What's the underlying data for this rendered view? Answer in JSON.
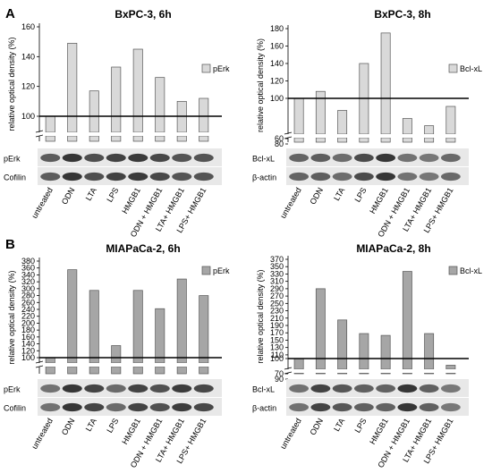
{
  "panels": {
    "A": {
      "label": "A"
    },
    "B": {
      "label": "B"
    }
  },
  "categories": [
    "untreated",
    "ODN",
    "LTA",
    "LPS",
    "HMGB1",
    "ODN + HMGB1",
    "LTA+ HMGB1",
    "LPS+ HMGB1"
  ],
  "chart_data": [
    {
      "type": "bar",
      "title": "BxPC-3, 6h",
      "ylabel": "relative optical density (%)",
      "legend": "pErk",
      "legend_position": "right",
      "categories": [
        "untreated",
        "ODN",
        "LTA",
        "LPS",
        "HMGB1",
        "ODN + HMGB1",
        "LTA+ HMGB1",
        "LPS+ HMGB1"
      ],
      "values": [
        100,
        149,
        117,
        133,
        145,
        126,
        110,
        112
      ],
      "yticks": [
        100,
        120,
        140,
        160
      ],
      "ylim": [
        0,
        160
      ],
      "axis_break": true,
      "reference_line": 100,
      "bar_color": "#d9d9d9",
      "blot_labels": [
        "pErk",
        "Cofilin"
      ]
    },
    {
      "type": "bar",
      "title": "BxPC-3, 8h",
      "ylabel": "relative optical density (%)",
      "legend": "Bcl-xL",
      "legend_position": "right",
      "categories": [
        "untreated",
        "ODN",
        "LTA",
        "LPS",
        "HMGB1",
        "ODN + HMGB1",
        "LTA+ HMGB1",
        "LPS+ HMGB1"
      ],
      "values": [
        100,
        108,
        85,
        140,
        175,
        75,
        66,
        90
      ],
      "yticks": [
        60,
        80,
        100,
        120,
        140,
        160,
        180
      ],
      "ylim": [
        60,
        180
      ],
      "axis_break": true,
      "reference_line": 100,
      "bar_color": "#d9d9d9",
      "blot_labels": [
        "Bcl-xL",
        "β-actin"
      ]
    },
    {
      "type": "bar",
      "title": "MIAPaCa-2, 6h",
      "ylabel": "relative optical density (%)",
      "legend": "pErk",
      "legend_position": "right",
      "categories": [
        "untreated",
        "ODN",
        "LTA",
        "LPS",
        "HMGB1",
        "ODN + HMGB1",
        "LTA+ HMGB1",
        "LPS+ HMGB1"
      ],
      "values": [
        100,
        355,
        295,
        135,
        295,
        242,
        328,
        280
      ],
      "yticks": [
        100,
        120,
        140,
        160,
        180,
        200,
        220,
        240,
        260,
        280,
        300,
        320,
        340,
        360,
        380
      ],
      "ylim": [
        0,
        380
      ],
      "axis_break": true,
      "reference_line": 100,
      "bar_color": "#a6a6a6",
      "blot_labels": [
        "pErk",
        "Cofilin"
      ]
    },
    {
      "type": "bar",
      "title": "MIAPaCa-2, 8h",
      "ylabel": "relative optical density (%)",
      "legend": "Bcl-xL",
      "legend_position": "right",
      "categories": [
        "untreated",
        "ODN",
        "LTA",
        "LPS",
        "HMGB1",
        "ODN + HMGB1",
        "LTA+ HMGB1",
        "LPS+ HMGB1"
      ],
      "values": [
        100,
        290,
        205,
        168,
        163,
        337,
        168,
        72
      ],
      "yticks": [
        70,
        90,
        100,
        110,
        130,
        150,
        170,
        190,
        210,
        230,
        250,
        270,
        290,
        310,
        330,
        350,
        370
      ],
      "ylim": [
        70,
        370
      ],
      "axis_break": true,
      "reference_line": 100,
      "bar_color": "#a6a6a6",
      "blot_labels": [
        "Bcl-xL",
        "β-actin"
      ]
    }
  ]
}
